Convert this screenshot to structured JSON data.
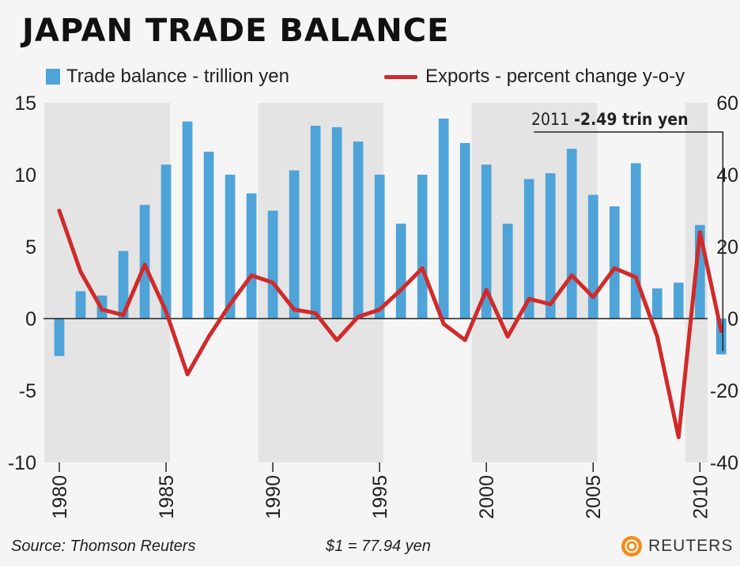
{
  "title": "JAPAN TRADE BALANCE",
  "legend": {
    "bars_label": "Trade balance - trillion yen",
    "line_label": "Exports - percent change y-o-y"
  },
  "annotation": {
    "year": "2011",
    "value": "-2.49 trin yen"
  },
  "footer": {
    "source": "Source: Thomson Reuters",
    "rate": "$1 = 77.94 yen",
    "logo_text": "REUTERS"
  },
  "colors": {
    "bars": "#4ea3d8",
    "line": "#d12a2a",
    "band": "#e4e4e4",
    "background": "#f5f5f5",
    "axis": "#222222"
  },
  "chart_data": {
    "type": "bar",
    "x": [
      1980,
      1981,
      1982,
      1983,
      1984,
      1985,
      1986,
      1987,
      1988,
      1989,
      1990,
      1991,
      1992,
      1993,
      1994,
      1995,
      1996,
      1997,
      1998,
      1999,
      2000,
      2001,
      2002,
      2003,
      2004,
      2005,
      2006,
      2007,
      2008,
      2009,
      2010,
      2011
    ],
    "series": [
      {
        "name": "Trade balance - trillion yen",
        "type": "bar",
        "axis": "left",
        "values": [
          -2.6,
          1.9,
          1.6,
          4.7,
          7.9,
          10.7,
          13.7,
          11.6,
          10.0,
          8.7,
          7.5,
          10.3,
          13.4,
          13.3,
          12.3,
          10.0,
          6.6,
          10.0,
          13.9,
          12.2,
          10.7,
          6.6,
          9.7,
          10.1,
          11.8,
          8.6,
          7.8,
          10.8,
          2.1,
          2.5,
          6.5,
          -2.49
        ]
      },
      {
        "name": "Exports - percent change y-o-y",
        "type": "line",
        "axis": "right",
        "values": [
          30,
          13,
          2.5,
          1,
          15,
          2,
          -15.5,
          -5,
          4,
          12,
          10,
          2.5,
          1.5,
          -6,
          0.5,
          2.5,
          8,
          14,
          -1.5,
          -6,
          8,
          -5,
          5.5,
          4,
          12,
          6,
          14,
          11.5,
          -5,
          -33,
          24,
          -3.5
        ]
      }
    ],
    "left_axis": {
      "ylim": [
        -10,
        15
      ],
      "ticks": [
        -10,
        -5,
        0,
        5,
        10,
        15
      ]
    },
    "right_axis": {
      "ylim": [
        -40,
        60
      ],
      "ticks": [
        -40,
        -20,
        0,
        20,
        40,
        60
      ]
    },
    "x_ticks": [
      1980,
      1985,
      1990,
      1995,
      2000,
      2005,
      2010
    ],
    "grid": false,
    "legend_position": "top"
  }
}
